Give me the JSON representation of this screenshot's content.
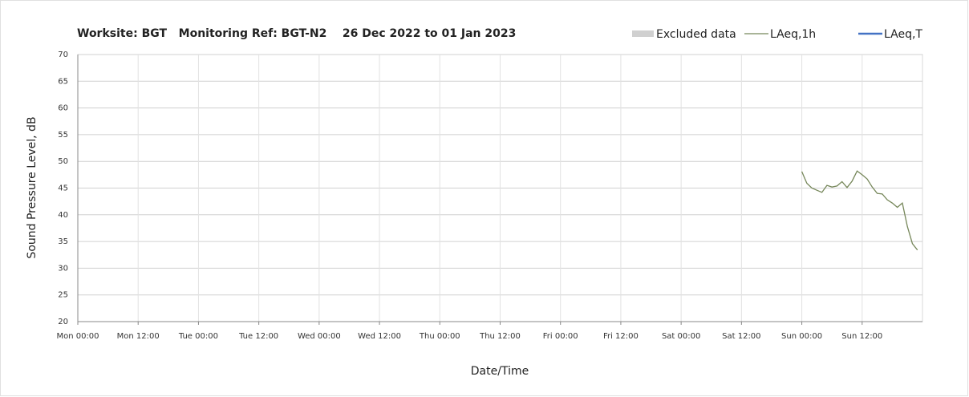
{
  "chart_data": {
    "type": "line",
    "title": "Worksite: BGT   Monitoring Ref: BGT-N2    26 Dec 2022 to 01 Jan 2023",
    "xlabel": "Date/Time",
    "ylabel": "Sound Pressure Level, dB",
    "excluded": {
      "name": "Excluded data",
      "color": "#d0d0d0"
    },
    "x": [
      144,
      145,
      146,
      147,
      148,
      149,
      150,
      151,
      152,
      153,
      154,
      155,
      156,
      157,
      158,
      159,
      160,
      161,
      162,
      163,
      164,
      165,
      166,
      167
    ],
    "series": [
      {
        "name": "LAeq,1h",
        "color": "#76875a",
        "values": [
          48.1,
          45.9,
          45,
          44.6,
          44.2,
          45.5,
          45.2,
          45.4,
          46.2,
          45.1,
          46.3,
          48.2,
          47.5,
          46.7,
          45.2,
          44,
          43.9,
          42.8,
          42.2,
          41.4,
          42.2,
          37.8,
          34.6,
          33.4
        ]
      },
      {
        "name": "LAeq,T",
        "color": "#4472c4",
        "values": [
          null,
          null,
          null,
          null,
          null,
          null,
          null,
          null,
          null,
          null,
          null,
          null,
          null,
          null,
          null,
          null,
          null,
          null,
          null,
          null,
          null,
          null,
          null,
          null
        ]
      }
    ],
    "xlim": [
      0,
      168
    ],
    "xticks": [
      {
        "value": 0,
        "label": "Mon 00:00"
      },
      {
        "value": 12,
        "label": "Mon 12:00"
      },
      {
        "value": 24,
        "label": "Tue 00:00"
      },
      {
        "value": 36,
        "label": "Tue 12:00"
      },
      {
        "value": 48,
        "label": "Wed 00:00"
      },
      {
        "value": 60,
        "label": "Wed 12:00"
      },
      {
        "value": 72,
        "label": "Thu 00:00"
      },
      {
        "value": 84,
        "label": "Thu 12:00"
      },
      {
        "value": 96,
        "label": "Fri 00:00"
      },
      {
        "value": 108,
        "label": "Fri 12:00"
      },
      {
        "value": 120,
        "label": "Sat 00:00"
      },
      {
        "value": 132,
        "label": "Sat 12:00"
      },
      {
        "value": 144,
        "label": "Sun 00:00"
      },
      {
        "value": 156,
        "label": "Sun 12:00"
      }
    ],
    "ylim": [
      20,
      70
    ],
    "yticks": [
      20,
      25,
      30,
      35,
      40,
      45,
      50,
      55,
      60,
      65,
      70
    ],
    "grid": true
  }
}
